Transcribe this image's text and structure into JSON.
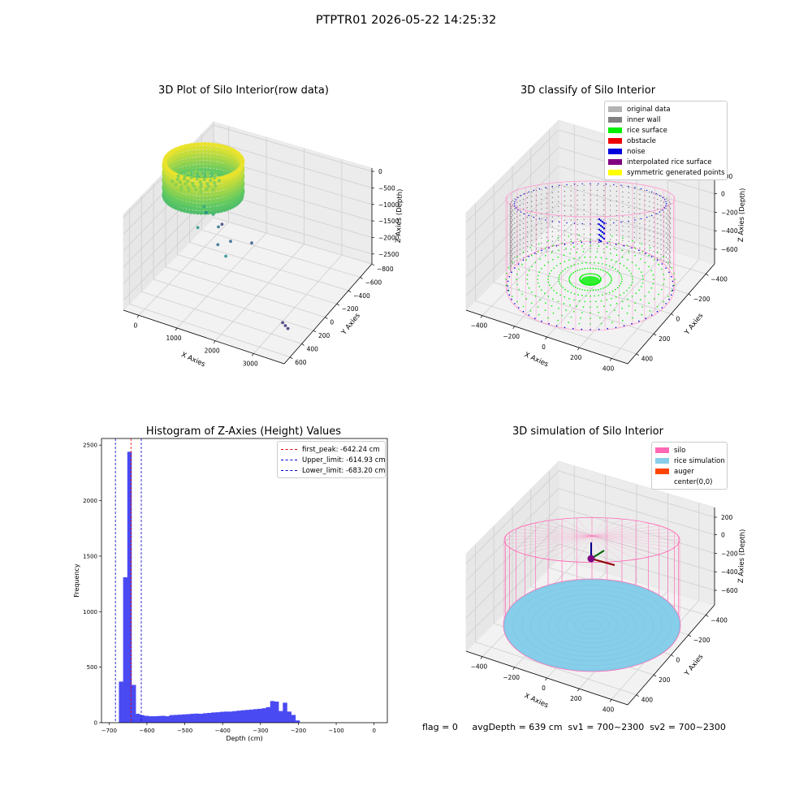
{
  "suptitle": "PTPTR01 2026-05-22 14:25:32",
  "footer": "flag = 0     avgDepth = 639 cm  sv1 = 700~2300  sv2 = 700~2300",
  "chart_data": [
    {
      "type": "scatter",
      "title": "3D Plot of Silo Interior(row data)",
      "xlabel": "X Axies",
      "ylabel": "Y Axies",
      "zlabel": "Z Axies (Depth)",
      "x_ticks": [
        "0",
        "1000",
        "2000",
        "3000"
      ],
      "y_ticks": [
        "600",
        "400",
        "200",
        "0",
        "−200",
        "−400",
        "−600",
        "−800"
      ],
      "z_ticks": [
        "0",
        "−500",
        "−1000",
        "−1500",
        "−2000",
        "−2500"
      ],
      "xlim": [
        -400,
        3800
      ],
      "ylim": [
        -800,
        700
      ],
      "zlim": [
        -2800,
        100
      ],
      "colormap": "viridis",
      "outliers": [
        {
          "x": 300,
          "y": 100,
          "z": -1100
        },
        {
          "x": 450,
          "y": -100,
          "z": -1300
        },
        {
          "x": 700,
          "y": 0,
          "z": -1000
        },
        {
          "x": 200,
          "y": 200,
          "z": -1500
        },
        {
          "x": 600,
          "y": 150,
          "z": -1700
        },
        {
          "x": 900,
          "y": -50,
          "z": -1750
        },
        {
          "x": 1000,
          "y": 100,
          "z": -1900
        },
        {
          "x": 1400,
          "y": 200,
          "z": -2000
        },
        {
          "x": 1500,
          "y": -300,
          "z": -1400
        },
        {
          "x": 300,
          "y": 400,
          "z": -2200
        },
        {
          "x": 3300,
          "y": -500,
          "z": -2350
        },
        {
          "x": 3400,
          "y": -520,
          "z": -2360
        },
        {
          "x": 3500,
          "y": -540,
          "z": -2370
        }
      ]
    },
    {
      "type": "scatter",
      "title": "3D classify of Silo Interior",
      "xlabel": "X Axies",
      "ylabel": "Y Axies",
      "zlabel": "Z Axies (Depth)",
      "x_ticks": [
        "−400",
        "−200",
        "0",
        "200",
        "400"
      ],
      "y_ticks": [
        "400",
        "200",
        "0",
        "−200",
        "−400"
      ],
      "z_ticks": [
        "200",
        "0",
        "−200",
        "−400",
        "−600"
      ],
      "legend": [
        {
          "label": "original data",
          "color": "#b3b3b3"
        },
        {
          "label": "inner wall",
          "color": "#808080"
        },
        {
          "label": "rice surface",
          "color": "#00ee00"
        },
        {
          "label": "obstacle",
          "color": "#ee0000"
        },
        {
          "label": "noise",
          "color": "#0000dd"
        },
        {
          "label": "interpolated rice surface",
          "color": "#800080"
        },
        {
          "label": "symmetric generated points",
          "color": "#ffff00"
        }
      ]
    },
    {
      "type": "bar",
      "title": "Histogram of Z-Axies (Height) Values",
      "xlabel": "Depth (cm)",
      "ylabel": "Frequency",
      "xlim": [
        -720,
        35
      ],
      "ylim": [
        0,
        2560
      ],
      "x_ticks": [
        -700,
        -600,
        -500,
        -400,
        -300,
        -200,
        -100,
        0
      ],
      "y_ticks": [
        0,
        500,
        1000,
        1500,
        2000,
        2500
      ],
      "bin_start": -674,
      "bin_width": 11.1,
      "values": [
        370,
        1310,
        2440,
        340,
        80,
        68,
        62,
        58,
        58,
        60,
        62,
        58,
        68,
        70,
        72,
        75,
        77,
        80,
        82,
        80,
        85,
        88,
        92,
        94,
        98,
        100,
        100,
        104,
        108,
        112,
        115,
        118,
        122,
        125,
        130,
        140,
        195,
        190,
        105,
        180,
        100,
        70,
        20
      ],
      "bar_color": "#4a4af2",
      "lines": [
        {
          "label": "first_peak: -642.24 cm",
          "x": -642.24,
          "color": "#dd0000"
        },
        {
          "label": "Upper_limit: -614.93 cm",
          "x": -614.93,
          "color": "#0000cc"
        },
        {
          "label": "Lower_limit: -683.20 cm",
          "x": -683.2,
          "color": "#0000cc"
        }
      ]
    },
    {
      "type": "scatter",
      "title": "3D simulation of Silo Interior",
      "xlabel": "X Axies",
      "ylabel": "Y Axies",
      "zlabel": "Z Axies (Depth)",
      "x_ticks": [
        "−400",
        "−200",
        "0",
        "200",
        "400"
      ],
      "y_ticks": [
        "400",
        "200",
        "0",
        "−200",
        "−400"
      ],
      "z_ticks": [
        "200",
        "0",
        "−200",
        "−400",
        "−600"
      ],
      "legend": [
        {
          "label": "silo",
          "color": "#ff69b4"
        },
        {
          "label": "rice simulation",
          "color": "#87ceeb"
        },
        {
          "label": "auger",
          "color": "#ff4500"
        },
        {
          "label": "center(0,0)",
          "color": "#ffffff"
        }
      ]
    }
  ]
}
